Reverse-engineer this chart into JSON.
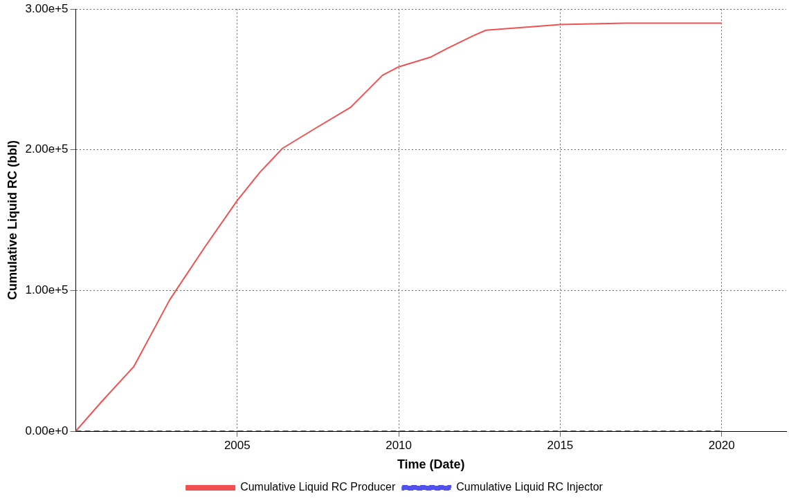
{
  "chart_data": {
    "type": "line",
    "xlabel": "Time (Date)",
    "ylabel": "Cumulative Liquid RC (bbl)",
    "xlim": [
      2000,
      2022
    ],
    "xticks": [
      2005,
      2010,
      2015,
      2020
    ],
    "ylim": [
      0,
      300000
    ],
    "yticks": [
      {
        "value": 0,
        "label": "0.00e+0"
      },
      {
        "value": 100000,
        "label": "1.00e+5"
      },
      {
        "value": 200000,
        "label": "2.00e+5"
      },
      {
        "value": 300000,
        "label": "3.00e+5"
      }
    ],
    "grid": true,
    "legend": "bottom",
    "marker": "none",
    "series": [
      {
        "name": "Cumulative Liquid RC Producer",
        "color": "#f05050",
        "line_style": "solid",
        "x": [
          2000,
          2000.8,
          2001.8,
          2002.9,
          2003.1,
          2004,
          2005,
          2005.7,
          2006.4,
          2007.4,
          2008.5,
          2009.5,
          2010,
          2011,
          2011.5,
          2012.3,
          2012.7,
          2015,
          2017,
          2020
        ],
        "values": [
          0,
          21000,
          46000,
          93000,
          100000,
          131000,
          164000,
          184000,
          201000,
          215000,
          230000,
          253000,
          259000,
          266000,
          272000,
          281000,
          285000,
          289000,
          290000,
          290000
        ]
      },
      {
        "name": "Cumulative Liquid RC Injector",
        "color": "#5050f0",
        "line_style": "dashed",
        "x": [
          2000,
          2020
        ],
        "values": [
          0,
          0
        ]
      }
    ]
  }
}
